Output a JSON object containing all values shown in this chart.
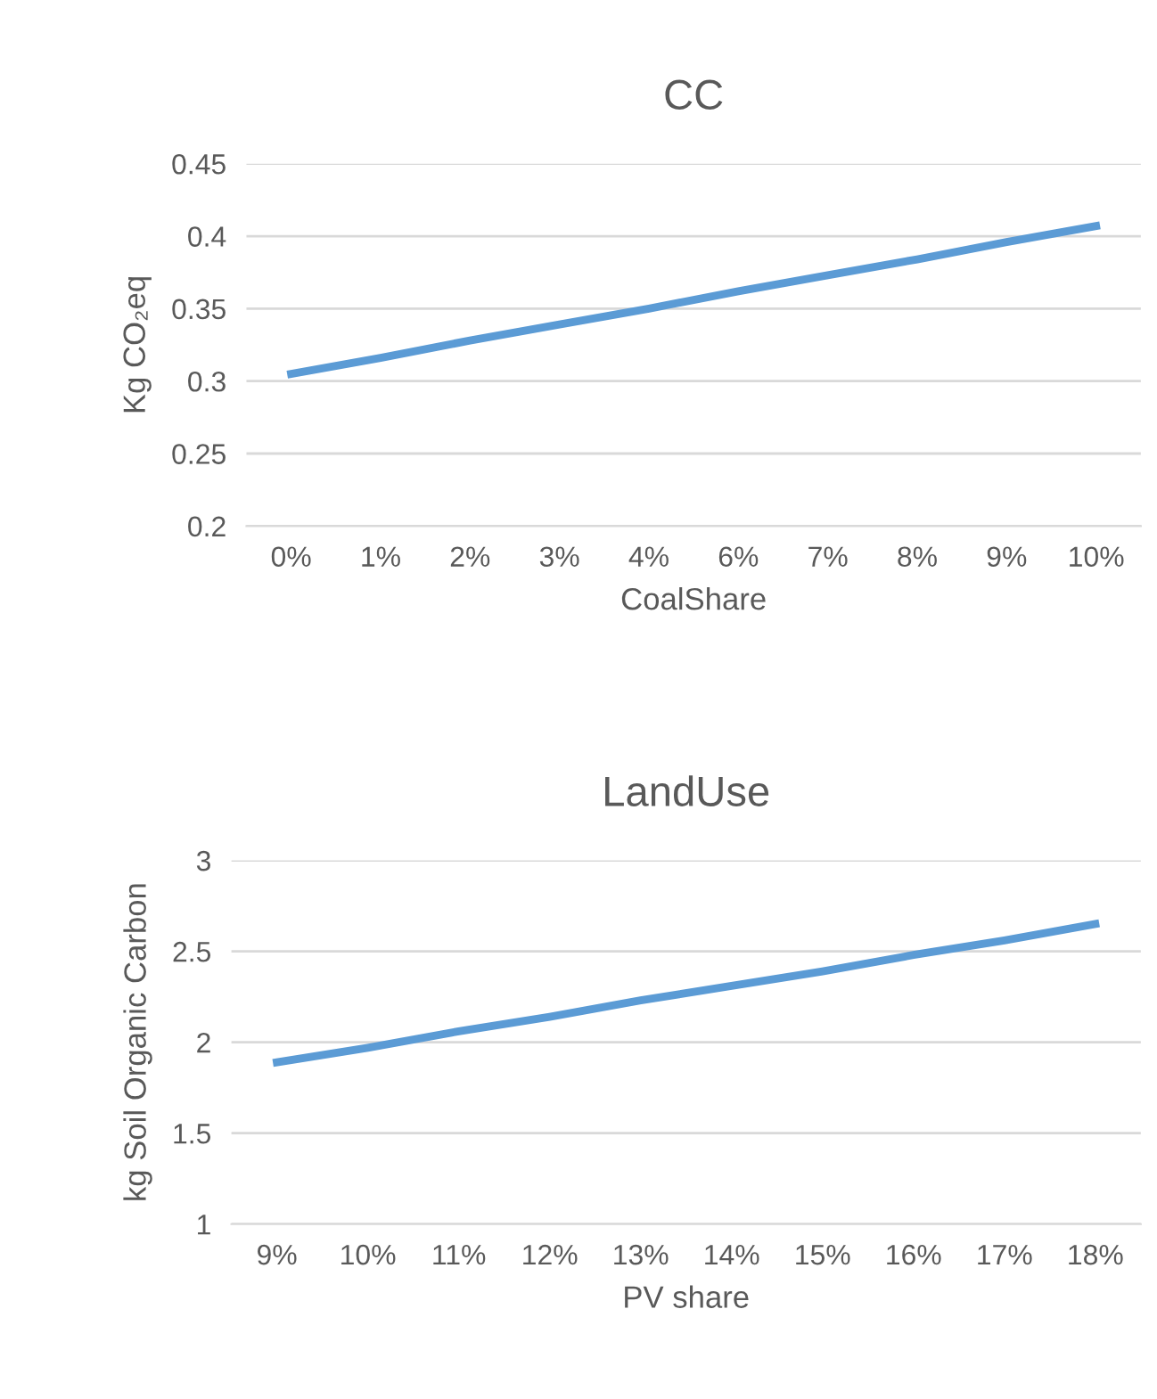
{
  "chart_data": [
    {
      "type": "line",
      "title": "CC",
      "xlabel": "CoalShare",
      "ylabel": "Kg CO₂eq",
      "categories": [
        "0%",
        "1%",
        "2%",
        "3%",
        "4%",
        "6%",
        "7%",
        "8%",
        "9%",
        "10%"
      ],
      "series": [
        {
          "color": "#5b9bd5",
          "values": [
            0.305,
            0.316,
            0.328,
            0.339,
            0.35,
            0.362,
            0.373,
            0.384,
            0.396,
            0.407
          ]
        }
      ],
      "ylim": [
        0.2,
        0.45
      ],
      "yticks": [
        0.2,
        0.25,
        0.3,
        0.35,
        0.4,
        0.45
      ],
      "grid": "y",
      "marker": "none",
      "line_style": "solid"
    },
    {
      "type": "line",
      "title": "LandUse",
      "xlabel": "PV share",
      "ylabel": "kg Soil Organic Carbon",
      "categories": [
        "9%",
        "10%",
        "11%",
        "12%",
        "13%",
        "14%",
        "15%",
        "16%",
        "17%",
        "18%"
      ],
      "series": [
        {
          "color": "#5b9bd5",
          "values": [
            1.89,
            1.97,
            2.06,
            2.14,
            2.23,
            2.31,
            2.39,
            2.48,
            2.56,
            2.65
          ]
        }
      ],
      "ylim": [
        1,
        3
      ],
      "yticks": [
        1,
        1.5,
        2,
        2.5,
        3
      ],
      "grid": "y",
      "marker": "none",
      "line_style": "solid"
    }
  ]
}
